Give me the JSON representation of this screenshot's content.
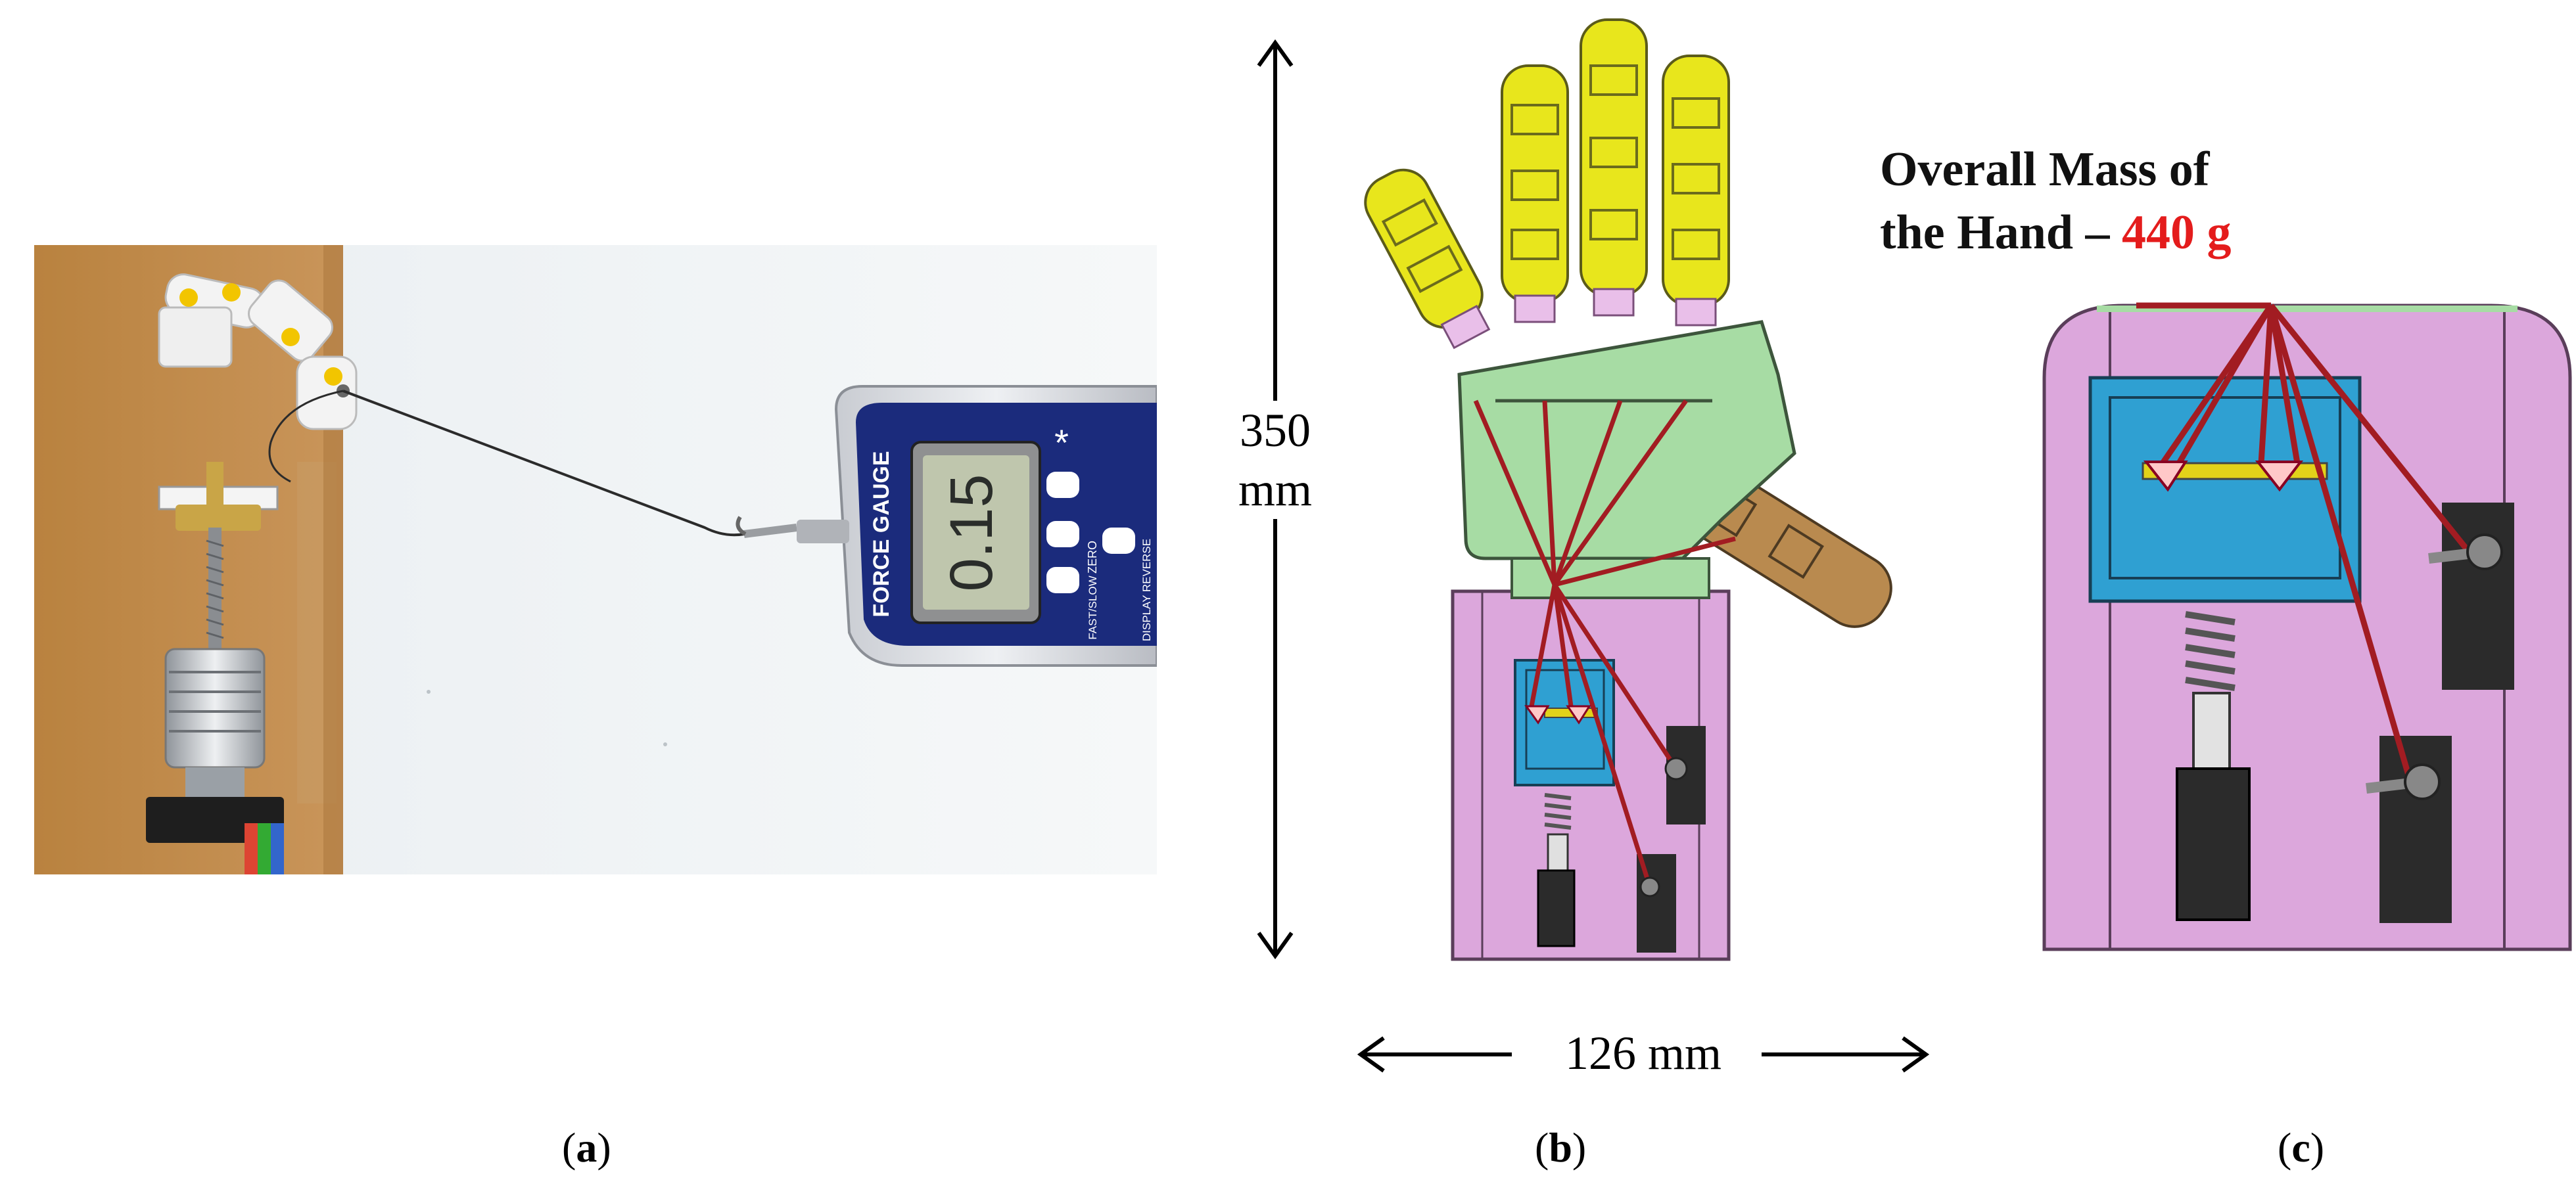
{
  "panel_a": {
    "caption": "a",
    "gauge": {
      "brand_label": "FORCE GAUGE",
      "reading": "0.15",
      "zero_label": "ZERO",
      "fast_slow_label": "FAST/SLOW",
      "display_reverse_label": "DISPLAY REVERSE"
    }
  },
  "panel_b": {
    "caption": "b",
    "height_value": "350",
    "height_unit": "mm",
    "width_label": "126 mm"
  },
  "panel_c": {
    "caption": "c",
    "mass_line1": "Overall Mass of",
    "mass_line2_prefix": "the Hand – ",
    "mass_value": "440 g"
  },
  "colors": {
    "finger_yellow": "#e8e61c",
    "palm_green": "#a7dca4",
    "base_pink": "#dca7dc",
    "block_blue": "#2fa0d2",
    "tendon_red": "#a21c22",
    "servo_black": "#2b2b2b",
    "thumb_tan": "#b98a4f",
    "mass_red": "#e41c1c"
  }
}
